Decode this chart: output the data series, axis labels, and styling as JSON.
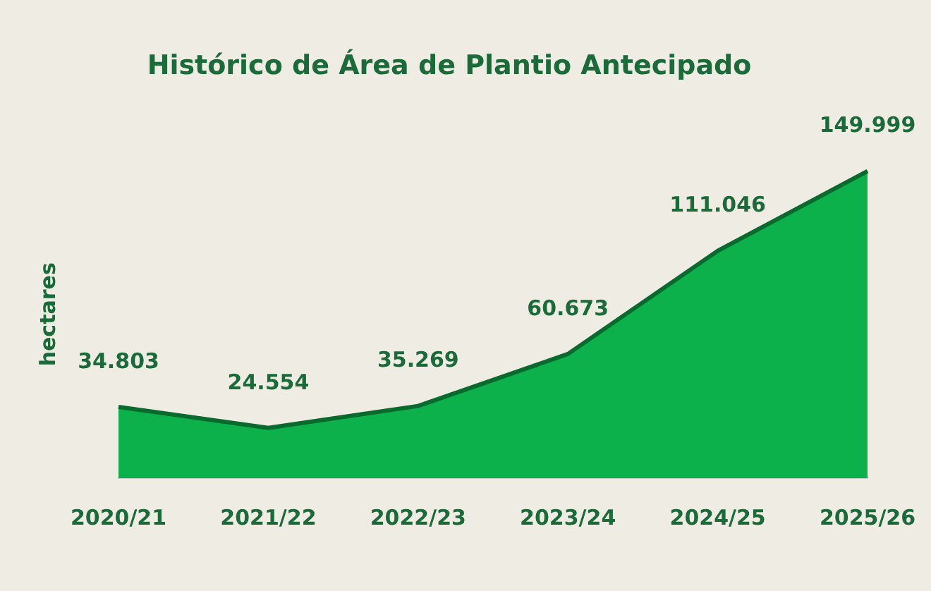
{
  "chart_data": {
    "type": "area",
    "title": "Histórico de Área de Plantio Antecipado",
    "ylabel": "hectares",
    "categories": [
      "2020/21",
      "2021/22",
      "2022/23",
      "2023/24",
      "2024/25",
      "2025/26"
    ],
    "series": [
      {
        "color": "#0db14b",
        "values": [
          34803,
          24554,
          35269,
          60673,
          111046,
          149999
        ],
        "value_labels": [
          "34.803",
          "24.554",
          "35.269",
          "60.673",
          "111.046",
          "149.999"
        ]
      }
    ],
    "grid": false,
    "legend": false,
    "marker": "none"
  }
}
